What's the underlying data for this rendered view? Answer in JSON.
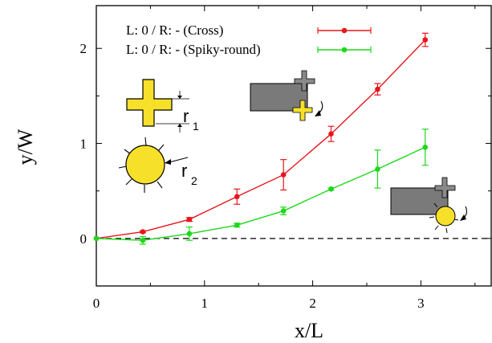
{
  "chart_data": {
    "type": "line",
    "xlabel": "x/L",
    "ylabel": "y/W",
    "xlim": [
      0,
      3.65
    ],
    "ylim": [
      -0.5,
      2.45
    ],
    "xticks": [
      0,
      1,
      2,
      3
    ],
    "yticks": [
      0,
      1,
      2
    ],
    "grid": false,
    "legend_position": "top-left",
    "reference_line": {
      "y": 0,
      "style": "dashed"
    },
    "series": [
      {
        "name": "L: 0 / R: - (Cross)",
        "color": "#e8161b",
        "x": [
          0,
          0.43,
          0.86,
          1.3,
          1.73,
          2.17,
          2.6,
          3.04
        ],
        "y": [
          0,
          0.07,
          0.2,
          0.44,
          0.67,
          1.1,
          1.57,
          2.09
        ],
        "err": [
          0,
          0.01,
          0.02,
          0.08,
          0.16,
          0.08,
          0.06,
          0.07
        ]
      },
      {
        "name": "L: 0 / R: - (Spiky-round)",
        "color": "#1cd91a",
        "x": [
          0,
          0.43,
          0.86,
          1.3,
          1.73,
          2.17,
          2.6,
          3.04
        ],
        "y": [
          0,
          -0.02,
          0.05,
          0.14,
          0.29,
          0.52,
          0.73,
          0.96
        ],
        "err": [
          0,
          0.04,
          0.07,
          0.02,
          0.04,
          0.01,
          0.2,
          0.19
        ]
      }
    ],
    "inset_labels": {
      "r1": "r",
      "r1_sub": "1",
      "r2": "r",
      "r2_sub": "2"
    },
    "colors": {
      "particle_fill": "#f7e02a",
      "gray_block": "#7a7a7a",
      "gray_cross": "#8a8a8a"
    }
  }
}
